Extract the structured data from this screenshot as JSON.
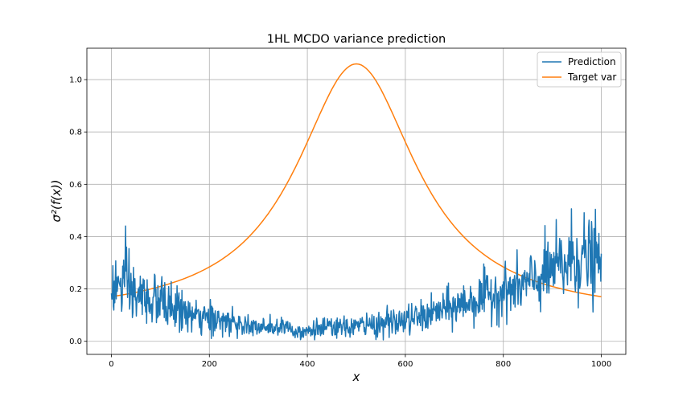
{
  "chart_data": {
    "type": "line",
    "title": "1HL MCDO variance prediction",
    "xlabel": "x",
    "ylabel": "σ²(f(x))",
    "xlim": [
      -50,
      1050
    ],
    "ylim": [
      -0.05,
      1.12
    ],
    "xticks": [
      0,
      200,
      400,
      600,
      800,
      1000
    ],
    "xtick_labels": [
      "0",
      "200",
      "400",
      "600",
      "800",
      "1000"
    ],
    "yticks": [
      0.0,
      0.2,
      0.4,
      0.6,
      0.8,
      1.0
    ],
    "ytick_labels": [
      "0.0",
      "0.2",
      "0.4",
      "0.6",
      "0.8",
      "1.0"
    ],
    "grid": true,
    "legend_position": "top-right",
    "series": [
      {
        "name": "Prediction",
        "color": "#1f77b4",
        "x": [
          0,
          25,
          50,
          75,
          100,
          125,
          150,
          175,
          200,
          225,
          250,
          275,
          300,
          325,
          350,
          375,
          400,
          425,
          450,
          475,
          500,
          525,
          550,
          575,
          600,
          625,
          650,
          675,
          700,
          725,
          750,
          775,
          800,
          825,
          850,
          875,
          900,
          925,
          950,
          975,
          1000
        ],
        "values": [
          0.2,
          0.22,
          0.17,
          0.16,
          0.15,
          0.13,
          0.11,
          0.09,
          0.08,
          0.08,
          0.07,
          0.06,
          0.05,
          0.05,
          0.05,
          0.05,
          0.04,
          0.05,
          0.05,
          0.05,
          0.06,
          0.06,
          0.07,
          0.07,
          0.08,
          0.09,
          0.1,
          0.12,
          0.13,
          0.15,
          0.16,
          0.18,
          0.19,
          0.2,
          0.22,
          0.24,
          0.27,
          0.29,
          0.33,
          0.31,
          0.3
        ],
        "noise": [
          0.05,
          0.08,
          0.06,
          0.05,
          0.05,
          0.04,
          0.04,
          0.03,
          0.03,
          0.03,
          0.025,
          0.025,
          0.02,
          0.02,
          0.02,
          0.02,
          0.02,
          0.02,
          0.02,
          0.02,
          0.02,
          0.025,
          0.025,
          0.025,
          0.03,
          0.03,
          0.03,
          0.035,
          0.04,
          0.04,
          0.045,
          0.05,
          0.05,
          0.05,
          0.055,
          0.06,
          0.07,
          0.08,
          0.09,
          0.08,
          0.08
        ]
      },
      {
        "name": "Target var",
        "color": "#ff7f0e",
        "x": [
          0,
          50,
          100,
          150,
          200,
          250,
          300,
          350,
          400,
          420,
          440,
          460,
          480,
          500,
          520,
          540,
          560,
          580,
          600,
          650,
          700,
          750,
          800,
          850,
          900,
          950,
          1000
        ],
        "values": [
          0.09,
          0.1,
          0.12,
          0.16,
          0.21,
          0.28,
          0.38,
          0.52,
          0.74,
          0.84,
          0.94,
          1.02,
          1.055,
          1.06,
          1.055,
          1.02,
          0.94,
          0.84,
          0.74,
          0.52,
          0.38,
          0.28,
          0.21,
          0.16,
          0.12,
          0.1,
          0.09
        ]
      }
    ]
  }
}
